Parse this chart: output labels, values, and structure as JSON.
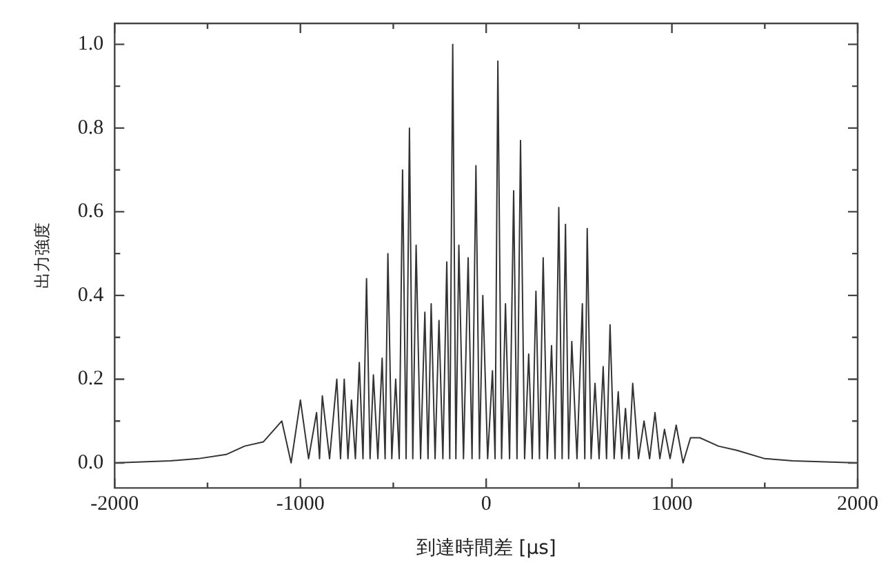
{
  "chart_data": {
    "type": "line",
    "xlabel": "到達時間差 [μs]",
    "ylabel": "出力強度",
    "color": "#333333",
    "x": [
      -2000,
      -1700,
      -1550,
      -1400,
      -1300,
      -1200,
      -1100,
      -1050,
      -1000,
      -956,
      -913,
      -897,
      -882,
      -843,
      -804,
      -784,
      -764,
      -744,
      -725,
      -704,
      -683,
      -663,
      -644,
      -625,
      -607,
      -583,
      -560,
      -544,
      -529,
      -508,
      -487,
      -468,
      -450,
      -431,
      -413,
      -395,
      -377,
      -353,
      -330,
      -313,
      -296,
      -275,
      -254,
      -233,
      -212,
      -196,
      -180,
      -163,
      -147,
      -122,
      -97,
      -76,
      -55,
      -36,
      -18,
      8,
      34,
      48,
      63,
      83,
      104,
      126,
      148,
      166,
      185,
      207,
      229,
      248,
      268,
      287,
      307,
      329,
      352,
      371,
      391,
      409,
      427,
      444,
      461,
      489,
      518,
      531,
      544,
      565,
      586,
      608,
      630,
      648,
      667,
      689,
      711,
      730,
      750,
      769,
      789,
      820,
      850,
      880,
      909,
      935,
      960,
      990,
      1023,
      1060,
      1100,
      1150,
      1250,
      1350,
      1500,
      1650,
      2000
    ],
    "values": [
      0,
      0.005,
      0.01,
      0.02,
      0.04,
      0.05,
      0.1,
      0,
      0.15,
      0.01,
      0.12,
      0.01,
      0.16,
      0.01,
      0.2,
      0.01,
      0.2,
      0.01,
      0.15,
      0.01,
      0.24,
      0.01,
      0.44,
      0.01,
      0.21,
      0.01,
      0.25,
      0.01,
      0.5,
      0.01,
      0.2,
      0.01,
      0.7,
      0.01,
      0.8,
      0.01,
      0.52,
      0.01,
      0.36,
      0.01,
      0.38,
      0.01,
      0.34,
      0.01,
      0.48,
      0.01,
      1.0,
      0.01,
      0.52,
      0.01,
      0.49,
      0.01,
      0.71,
      0.01,
      0.4,
      0.01,
      0.22,
      0.01,
      0.96,
      0.01,
      0.38,
      0.01,
      0.65,
      0.01,
      0.77,
      0.01,
      0.26,
      0.01,
      0.41,
      0.01,
      0.49,
      0.01,
      0.28,
      0.01,
      0.61,
      0.01,
      0.57,
      0.01,
      0.29,
      0.01,
      0.38,
      0.01,
      0.56,
      0.01,
      0.19,
      0.01,
      0.23,
      0.01,
      0.33,
      0.01,
      0.17,
      0.01,
      0.13,
      0.01,
      0.19,
      0.01,
      0.1,
      0.01,
      0.12,
      0.01,
      0.08,
      0.01,
      0.09,
      0,
      0.06,
      0.06,
      0.04,
      0.03,
      0.01,
      0.005,
      0
    ],
    "xlim": [
      -2000,
      2000
    ],
    "ylim": [
      -0.06,
      1.05
    ],
    "xticks": [
      -2000,
      {
        "value": -1500,
        "label": null
      },
      -1000,
      {
        "value": -500,
        "label": null
      },
      0,
      {
        "value": 500,
        "label": null
      },
      1000,
      {
        "value": 1500,
        "label": null
      },
      2000
    ],
    "yticks": [
      {
        "value": 0,
        "label": "0.0"
      },
      {
        "value": 0.1,
        "label": null
      },
      {
        "value": 0.2,
        "label": "0.2"
      },
      {
        "value": 0.3,
        "label": null
      },
      {
        "value": 0.4,
        "label": "0.4"
      },
      {
        "value": 0.5,
        "label": null
      },
      {
        "value": 0.6,
        "label": "0.6"
      },
      {
        "value": 0.7,
        "label": null
      },
      {
        "value": 0.8,
        "label": "0.8"
      },
      {
        "value": 0.9,
        "label": null
      },
      {
        "value": 1.0,
        "label": "1.0"
      }
    ]
  }
}
